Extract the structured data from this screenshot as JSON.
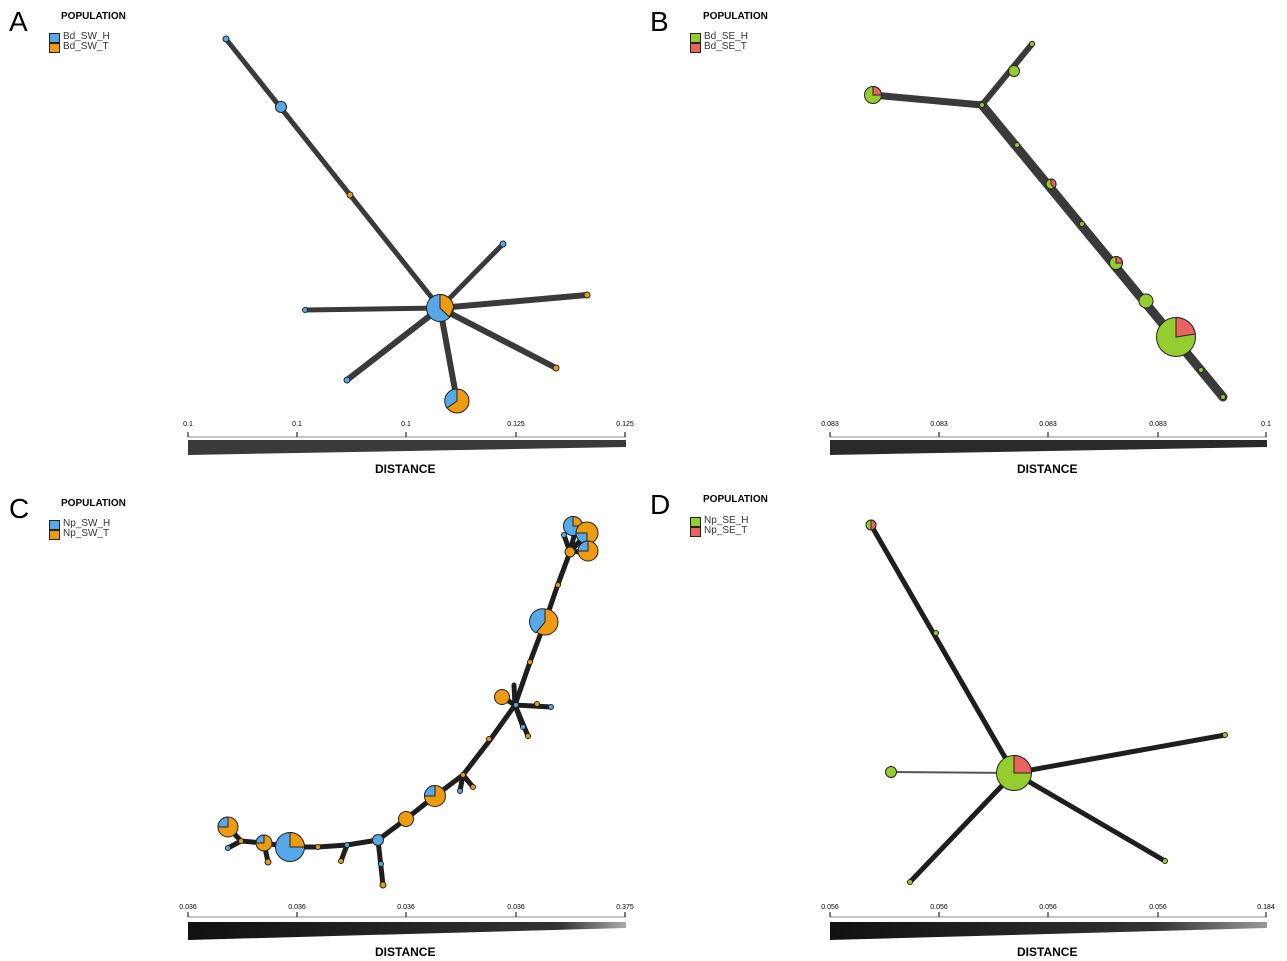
{
  "panels": [
    {
      "letter": "A",
      "legend_title": "POPULATION",
      "legend": [
        {
          "name": "Bd_SW_H",
          "color": "#56a8e8"
        },
        {
          "name": "Bd_SW_T",
          "color": "#ee9b0f"
        }
      ],
      "scale_ticks": [
        "0.1",
        "0.1",
        "0.1",
        "0.125",
        "0.125"
      ],
      "distance_title": "DISTANCE"
    },
    {
      "letter": "B",
      "legend_title": "POPULATION",
      "legend": [
        {
          "name": "Bd_SE_H",
          "color": "#93cd2f"
        },
        {
          "name": "Bd_SE_T",
          "color": "#ea6360"
        }
      ],
      "scale_ticks": [
        "0.083",
        "0.083",
        "0.083",
        "0.083",
        "0.1"
      ],
      "distance_title": "DISTANCE"
    },
    {
      "letter": "C",
      "legend_title": "POPULATION",
      "legend": [
        {
          "name": "Np_SW_H",
          "color": "#56a8e8"
        },
        {
          "name": "Np_SW_T",
          "color": "#ee9b0f"
        }
      ],
      "scale_ticks": [
        "0.036",
        "0.036",
        "0.036",
        "0.036",
        "0.375"
      ],
      "distance_title": "DISTANCE"
    },
    {
      "letter": "D",
      "legend_title": "POPULATION",
      "legend": [
        {
          "name": "Np_SE_H",
          "color": "#93cd2f"
        },
        {
          "name": "Np_SE_T",
          "color": "#ea6360"
        }
      ],
      "scale_ticks": [
        "0.056",
        "0.056",
        "0.056",
        "0.056",
        "0.184"
      ],
      "distance_title": "DISTANCE"
    }
  ]
}
